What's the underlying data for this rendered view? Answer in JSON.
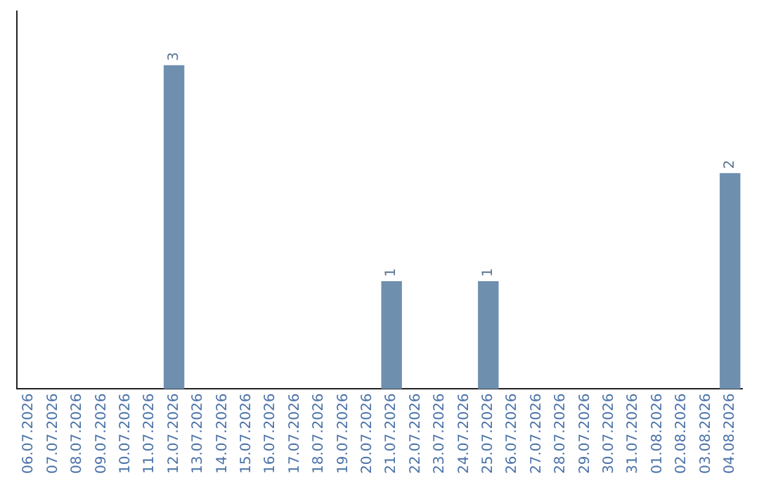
{
  "chart_data": {
    "type": "bar",
    "categories": [
      "06.07.2026",
      "07.07.2026",
      "08.07.2026",
      "09.07.2026",
      "10.07.2026",
      "11.07.2026",
      "12.07.2026",
      "13.07.2026",
      "14.07.2026",
      "15.07.2026",
      "16.07.2026",
      "17.07.2026",
      "18.07.2026",
      "19.07.2026",
      "20.07.2026",
      "21.07.2026",
      "22.07.2026",
      "23.07.2026",
      "24.07.2026",
      "25.07.2026",
      "26.07.2026",
      "27.07.2026",
      "28.07.2026",
      "29.07.2026",
      "30.07.2026",
      "31.07.2026",
      "01.08.2026",
      "02.08.2026",
      "03.08.2026",
      "04.08.2026"
    ],
    "values": [
      null,
      null,
      null,
      null,
      null,
      null,
      3,
      null,
      null,
      null,
      null,
      null,
      null,
      null,
      null,
      1,
      null,
      null,
      null,
      1,
      null,
      null,
      null,
      null,
      null,
      null,
      null,
      null,
      null,
      2
    ],
    "color": "#6f8faf",
    "data_labels": true,
    "grid": false,
    "legend": false
  }
}
